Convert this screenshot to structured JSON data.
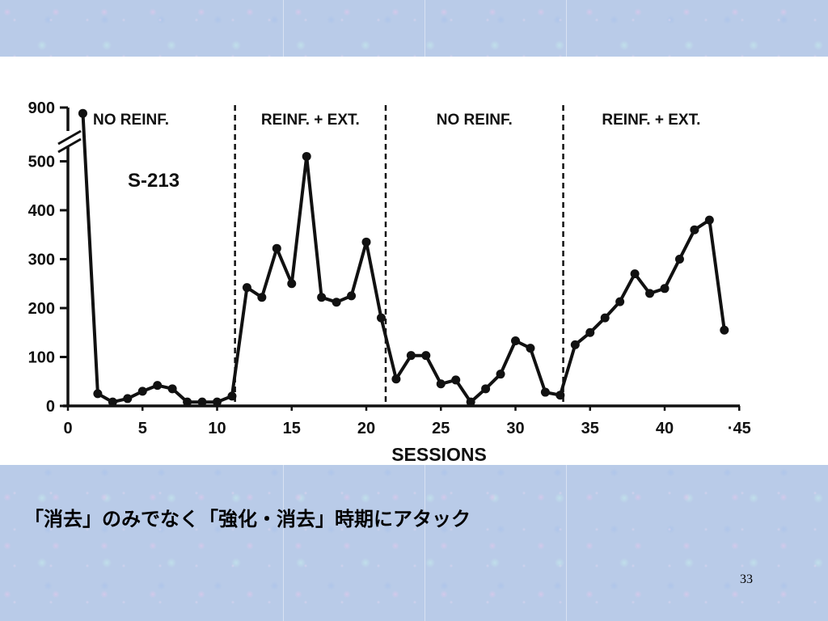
{
  "chart_data": {
    "type": "line",
    "title": "S-213",
    "xlabel": "SESSIONS",
    "ylabel": "",
    "x_ticks": [
      "0",
      "5",
      "10",
      "15",
      "20",
      "25",
      "30",
      "35",
      "40",
      "·45"
    ],
    "y_ticks": [
      "0",
      "100",
      "200",
      "300",
      "400",
      "500",
      "900"
    ],
    "y_axis_break": "between 500 and 900",
    "xlim": [
      0,
      45
    ],
    "ylim": [
      0,
      900
    ],
    "grid": false,
    "phases": [
      {
        "label": "NO REINF.",
        "start": 0,
        "end": 11.2
      },
      {
        "label": "REINF. + EXT.",
        "start": 11.2,
        "end": 21.3
      },
      {
        "label": "NO REINF.",
        "start": 21.3,
        "end": 33.2
      },
      {
        "label": "REINF. + EXT.",
        "start": 33.2,
        "end": 45
      }
    ],
    "series": [
      {
        "values": [
          [
            1,
            860
          ],
          [
            2,
            25
          ],
          [
            3,
            8
          ],
          [
            4,
            15
          ],
          [
            5,
            30
          ],
          [
            6,
            42
          ],
          [
            7,
            35
          ],
          [
            8,
            8
          ],
          [
            9,
            8
          ],
          [
            10,
            8
          ],
          [
            11,
            20
          ],
          [
            12,
            242
          ],
          [
            13,
            222
          ],
          [
            14,
            322
          ],
          [
            15,
            250
          ],
          [
            16,
            510
          ],
          [
            17,
            222
          ],
          [
            18,
            212
          ],
          [
            19,
            225
          ],
          [
            20,
            335
          ],
          [
            21,
            180
          ],
          [
            22,
            55
          ],
          [
            23,
            103
          ],
          [
            24,
            103
          ],
          [
            25,
            45
          ],
          [
            26,
            53
          ],
          [
            27,
            8
          ],
          [
            28,
            35
          ],
          [
            29,
            65
          ],
          [
            30,
            133
          ],
          [
            31,
            118
          ],
          [
            32,
            28
          ],
          [
            33,
            22
          ],
          [
            34,
            125
          ],
          [
            35,
            150
          ],
          [
            36,
            180
          ],
          [
            37,
            213
          ],
          [
            38,
            270
          ],
          [
            39,
            230
          ],
          [
            40,
            240
          ],
          [
            41,
            300
          ],
          [
            42,
            360
          ],
          [
            43,
            380
          ],
          [
            44,
            155
          ]
        ]
      }
    ]
  },
  "caption": "「消去」のみでなく「強化・消去」時期にアタック",
  "slide_number": "33"
}
